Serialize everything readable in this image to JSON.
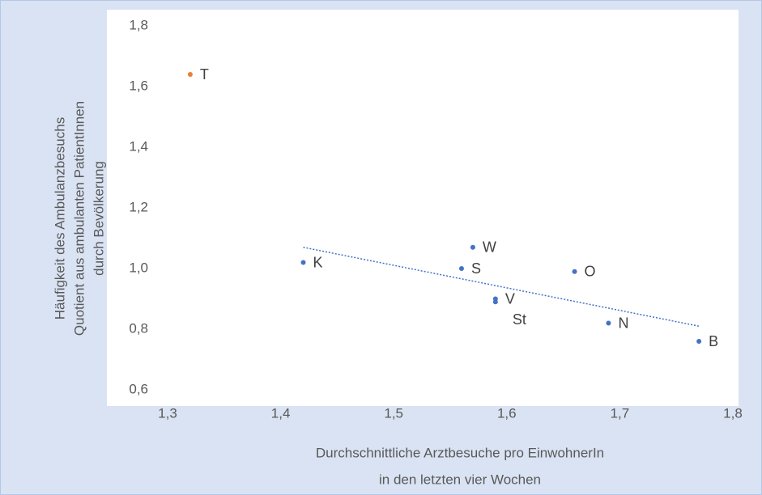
{
  "chart_data": {
    "type": "scatter",
    "xlabel": [
      "Durchschnittliche Arztbesuche pro EinwohnerIn",
      "in den letzten vier Wochen"
    ],
    "ylabel": [
      "Häufigkeit des Ambulanzbesuchs",
      "Quotient aus ambulanten PatientInnen",
      "durch Bevölkerung"
    ],
    "xlim": [
      1.3,
      1.8
    ],
    "xticks": [
      {
        "value": 1.3,
        "label": "1,3"
      },
      {
        "value": 1.4,
        "label": "1,4"
      },
      {
        "value": 1.5,
        "label": "1,5"
      },
      {
        "value": 1.6,
        "label": "1,6"
      },
      {
        "value": 1.7,
        "label": "1,7"
      },
      {
        "value": 1.8,
        "label": "1,8"
      }
    ],
    "ylim": [
      0.6,
      1.8
    ],
    "yticks": [
      {
        "value": 0.6,
        "label": "0,6"
      },
      {
        "value": 0.8,
        "label": "0,8"
      },
      {
        "value": 1.0,
        "label": "1,0"
      },
      {
        "value": 1.2,
        "label": "1,2"
      },
      {
        "value": 1.4,
        "label": "1,4"
      },
      {
        "value": 1.6,
        "label": "1,6"
      },
      {
        "value": 1.8,
        "label": "1,8"
      }
    ],
    "series": [
      {
        "color": "#4472c4",
        "x": [
          1.42,
          1.57,
          1.56,
          1.66,
          1.59,
          1.59,
          1.69,
          1.77
        ],
        "values": [
          1.02,
          1.07,
          1.0,
          0.99,
          0.9,
          0.89,
          0.82,
          0.76
        ],
        "labels": [
          "K",
          "W",
          "S",
          "O",
          "V",
          "St",
          "N",
          "B"
        ]
      },
      {
        "color": "#ed7d31",
        "x": [
          1.32
        ],
        "values": [
          1.64
        ],
        "labels": [
          "T"
        ]
      }
    ],
    "trendline": {
      "color": "#4472c4",
      "x": [
        1.42,
        1.77
      ],
      "values": [
        1.07,
        0.81
      ]
    }
  }
}
